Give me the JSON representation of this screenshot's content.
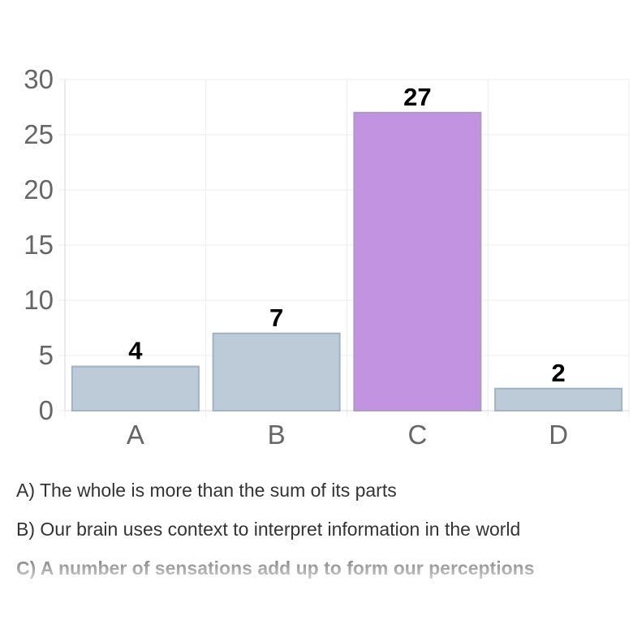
{
  "chart_data": {
    "type": "bar",
    "categories": [
      "A",
      "B",
      "C",
      "D"
    ],
    "values": [
      4,
      7,
      27,
      2
    ],
    "ylim": [
      0,
      30
    ],
    "yticks": [
      0,
      5,
      10,
      15,
      20,
      25,
      30
    ],
    "grid": true,
    "highlight_index": 2,
    "colors": {
      "bar": "#bccbd7",
      "bar_border": "#9fb3c4",
      "highlight": "#c293e0",
      "highlight_border": "#aa9bbf",
      "grid": "#eeeeee",
      "axis": "#d9d9d9"
    }
  },
  "answers": [
    {
      "text": "A) The whole is more than the sum of its parts",
      "correct": false
    },
    {
      "text": "B) Our brain uses context to interpret information in the world",
      "correct": false
    },
    {
      "text": "C) A number of sensations add up to form our perceptions",
      "correct": true
    }
  ]
}
